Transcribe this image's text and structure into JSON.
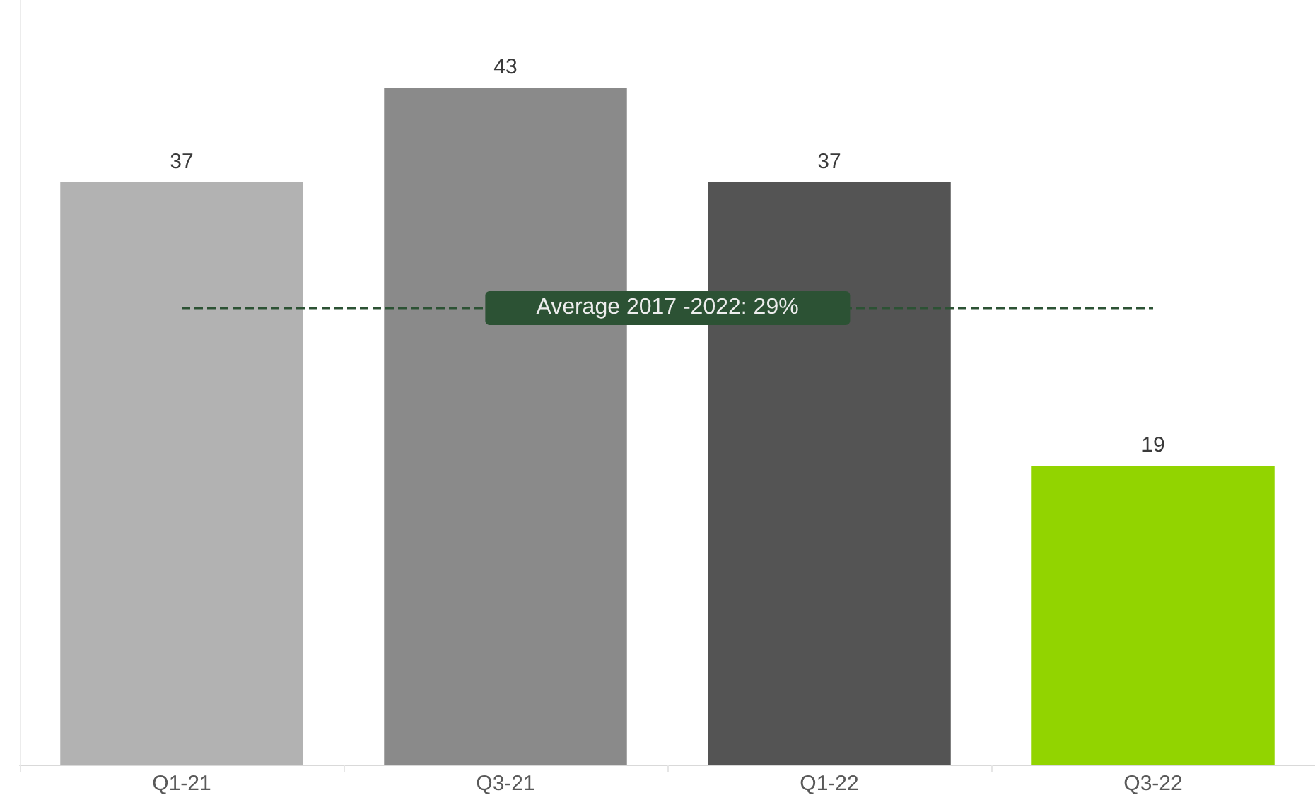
{
  "chart_data": {
    "type": "bar",
    "categories": [
      "Q1-21",
      "Q3-21",
      "Q1-22",
      "Q3-22"
    ],
    "values": [
      37,
      43,
      37,
      19
    ],
    "colors": [
      "#b2b2b2",
      "#8a8a8a",
      "#545454",
      "#92d400"
    ],
    "data_labels": true,
    "ref_lines": [
      {
        "axis": "y",
        "value": 29,
        "label": "Average 2017 -2022: 29%",
        "color": "#2c5234",
        "line_style": "dashed"
      }
    ],
    "tick_labels": "x"
  }
}
